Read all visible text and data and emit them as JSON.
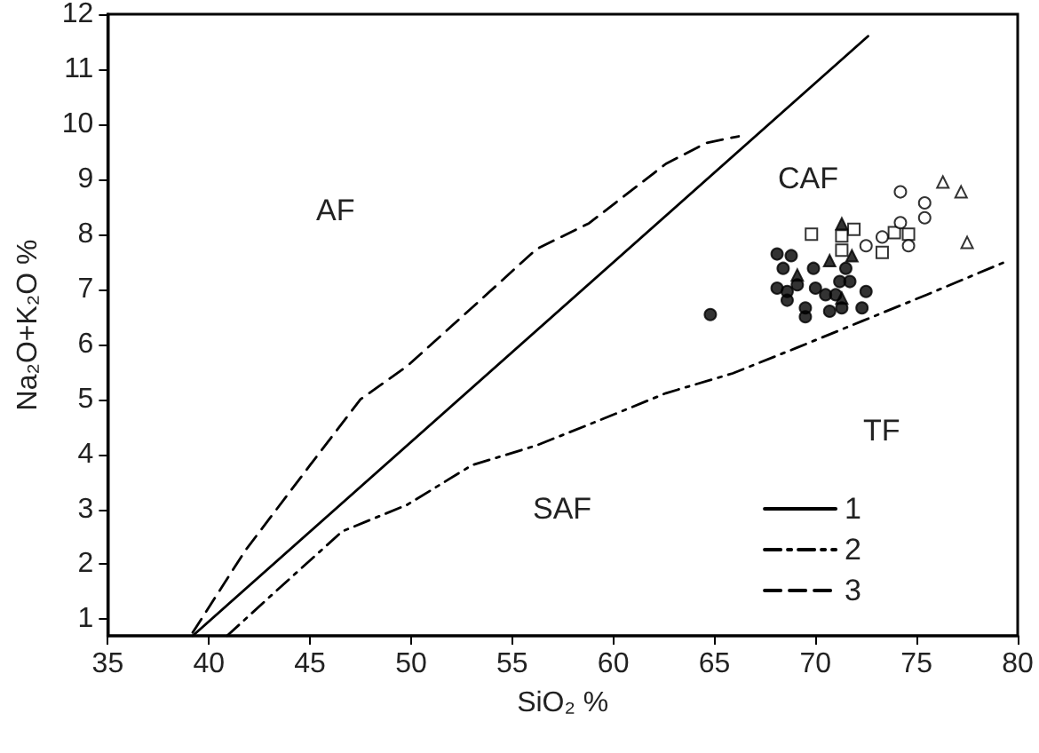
{
  "chart_data": {
    "type": "scatter",
    "xlabel": "SiO₂ %",
    "ylabel": "Na₂O+K₂O %",
    "xlim": [
      35,
      80
    ],
    "xticks": [
      35,
      40,
      45,
      50,
      55,
      60,
      65,
      70,
      75,
      80
    ],
    "ylim": [
      0.7,
      12
    ],
    "yticks": [
      1,
      2,
      3,
      4,
      5,
      6,
      7,
      8,
      9,
      10,
      11,
      12
    ],
    "grid": false,
    "legend": "bottom right",
    "annotations": [
      "AF",
      "CAF",
      "TF",
      "SAF"
    ],
    "series": [
      {
        "name": "1",
        "type": "line",
        "color": "#000000",
        "line_style": "solid",
        "marker": "none",
        "x": [
          39.2,
          72.6
        ],
        "values": [
          0.7,
          11.6
        ]
      },
      {
        "name": "2",
        "type": "line",
        "color": "#000000",
        "line_style": "dashdot",
        "marker": "none",
        "x": [
          40.9,
          43.4,
          46.6,
          49.8,
          53.0,
          56.2,
          59.4,
          62.6,
          65.9,
          69.1,
          72.3,
          75.5,
          79.4
        ],
        "values": [
          0.7,
          1.54,
          2.6,
          3.08,
          3.8,
          4.16,
          4.63,
          5.11,
          5.47,
          5.94,
          6.42,
          6.9,
          7.5
        ]
      },
      {
        "name": "3",
        "type": "line",
        "color": "#000000",
        "line_style": "dashed",
        "marker": "none",
        "x": [
          39.2,
          41.8,
          45.0,
          47.5,
          49.8,
          53.0,
          56.2,
          58.8,
          62.6,
          64.6,
          66.2
        ],
        "values": [
          0.76,
          2.25,
          3.8,
          5.0,
          5.6,
          6.66,
          7.73,
          8.2,
          9.28,
          9.66,
          9.78
        ]
      },
      {
        "color": "#000000",
        "marker": "circle",
        "x": [
          64.8,
          68.1,
          68.8,
          68.4,
          68.1,
          68.6,
          68.6,
          69.1,
          69.9,
          70.0,
          69.5,
          70.5,
          70.7,
          71.2,
          71.7,
          71.5,
          71.3,
          72.3,
          72.5,
          69.5,
          71.0
        ],
        "values": [
          6.54,
          7.64,
          7.61,
          7.38,
          7.02,
          6.96,
          6.8,
          7.08,
          7.38,
          7.02,
          6.66,
          6.9,
          6.6,
          7.14,
          7.14,
          7.38,
          6.66,
          6.66,
          6.96,
          6.5,
          6.9
        ]
      },
      {
        "color": "#000000",
        "marker": "triangle",
        "x": [
          71.3,
          70.7,
          69.1,
          71.8,
          71.3
        ],
        "values": [
          8.19,
          7.52,
          7.26,
          7.61,
          6.84
        ]
      },
      {
        "color": "#ffffff",
        "marker": "square",
        "x": [
          69.8,
          71.3,
          71.9,
          71.3,
          73.3,
          73.9,
          74.6
        ],
        "values": [
          8.0,
          7.97,
          8.09,
          7.71,
          7.67,
          8.03,
          8.0
        ]
      },
      {
        "color": "#ffffff",
        "marker": "circle",
        "x": [
          74.2,
          75.4,
          75.4,
          72.5,
          73.3,
          74.2,
          74.6
        ],
        "values": [
          8.77,
          8.57,
          8.3,
          7.79,
          7.95,
          8.21,
          7.79
        ]
      },
      {
        "color": "#ffffff",
        "marker": "triangle",
        "x": [
          76.3,
          77.2,
          77.5
        ],
        "values": [
          8.95,
          8.77,
          7.85
        ]
      }
    ]
  }
}
